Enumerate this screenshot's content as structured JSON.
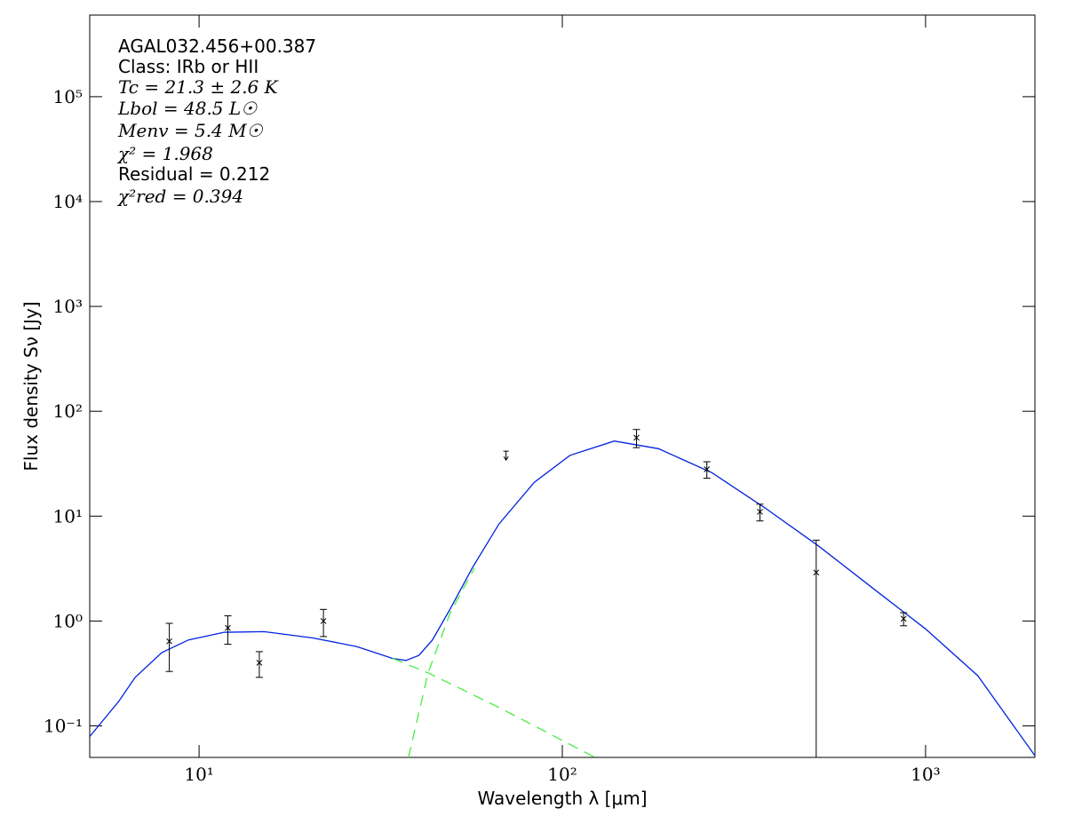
{
  "chart_data": {
    "type": "line",
    "log_x": true,
    "log_y": true,
    "xlabel": "Wavelength λ [μm]",
    "ylabel": "Flux density Sν [Jy]",
    "annotations": [
      "AGAL032.456+00.387",
      "Class: IRb or HII",
      "Tc = 21.3 ± 2.6 K",
      "Lbol = 48.5 L☉",
      "Menv = 5.4 M☉",
      "χ² = 1.968",
      "Residual = 0.212",
      "χ²red = 0.394"
    ],
    "xlim": [
      5,
      2000
    ],
    "ylim": [
      0.05,
      600000
    ],
    "xticks": [
      {
        "value": 10,
        "label": "10¹"
      },
      {
        "value": 100,
        "label": "10²"
      },
      {
        "value": 1000,
        "label": "10³"
      }
    ],
    "yticks": [
      {
        "value": 0.1,
        "label": "10⁻¹"
      },
      {
        "value": 1,
        "label": "10⁰"
      },
      {
        "value": 10,
        "label": "10¹"
      },
      {
        "value": 100,
        "label": "10²"
      },
      {
        "value": 1000,
        "label": "10³"
      },
      {
        "value": 10000,
        "label": "10⁴"
      },
      {
        "value": 100000,
        "label": "10⁵"
      }
    ],
    "curves": [
      {
        "color": "#0022dd",
        "dash": false,
        "x": [
          5.0,
          6.0,
          6.67,
          7.9,
          9.35,
          11.7,
          15.1,
          20.5,
          27.2,
          34.1,
          37.1,
          40.3,
          43.9,
          49.1,
          56.5,
          66.9,
          83.7,
          105,
          139,
          184,
          258,
          361,
          507,
          710,
          1000,
          1393,
          2000
        ],
        "values": [
          0.079,
          0.17,
          0.29,
          0.5,
          0.66,
          0.78,
          0.79,
          0.69,
          0.57,
          0.44,
          0.42,
          0.47,
          0.66,
          1.3,
          3.2,
          8.4,
          21,
          38,
          52,
          44,
          26,
          12,
          5.2,
          2.1,
          0.84,
          0.3,
          0.052
        ]
      },
      {
        "color": "#44ee44",
        "dash": true,
        "x": [
          34.1,
          42.7,
          66.9,
          123
        ],
        "values": [
          0.44,
          0.32,
          0.15,
          0.05
        ]
      },
      {
        "color": "#44ee44",
        "dash": true,
        "x": [
          37.7,
          42.7,
          49.1,
          57.3
        ],
        "values": [
          0.05,
          0.32,
          1.19,
          3.2
        ]
      }
    ],
    "points": {
      "color": "#000000",
      "x": [
        8.28,
        12,
        14.65,
        22,
        160,
        250,
        350,
        500,
        870
      ],
      "values": [
        0.64,
        0.86,
        0.4,
        1.0,
        56,
        28,
        11,
        2.9,
        1.05
      ],
      "yerr": [
        0.31,
        0.26,
        0.11,
        0.29,
        11,
        5,
        2,
        3.0,
        0.15
      ]
    },
    "upper_limits": {
      "color": "#000000",
      "x": [
        70
      ],
      "values": [
        40
      ]
    }
  }
}
